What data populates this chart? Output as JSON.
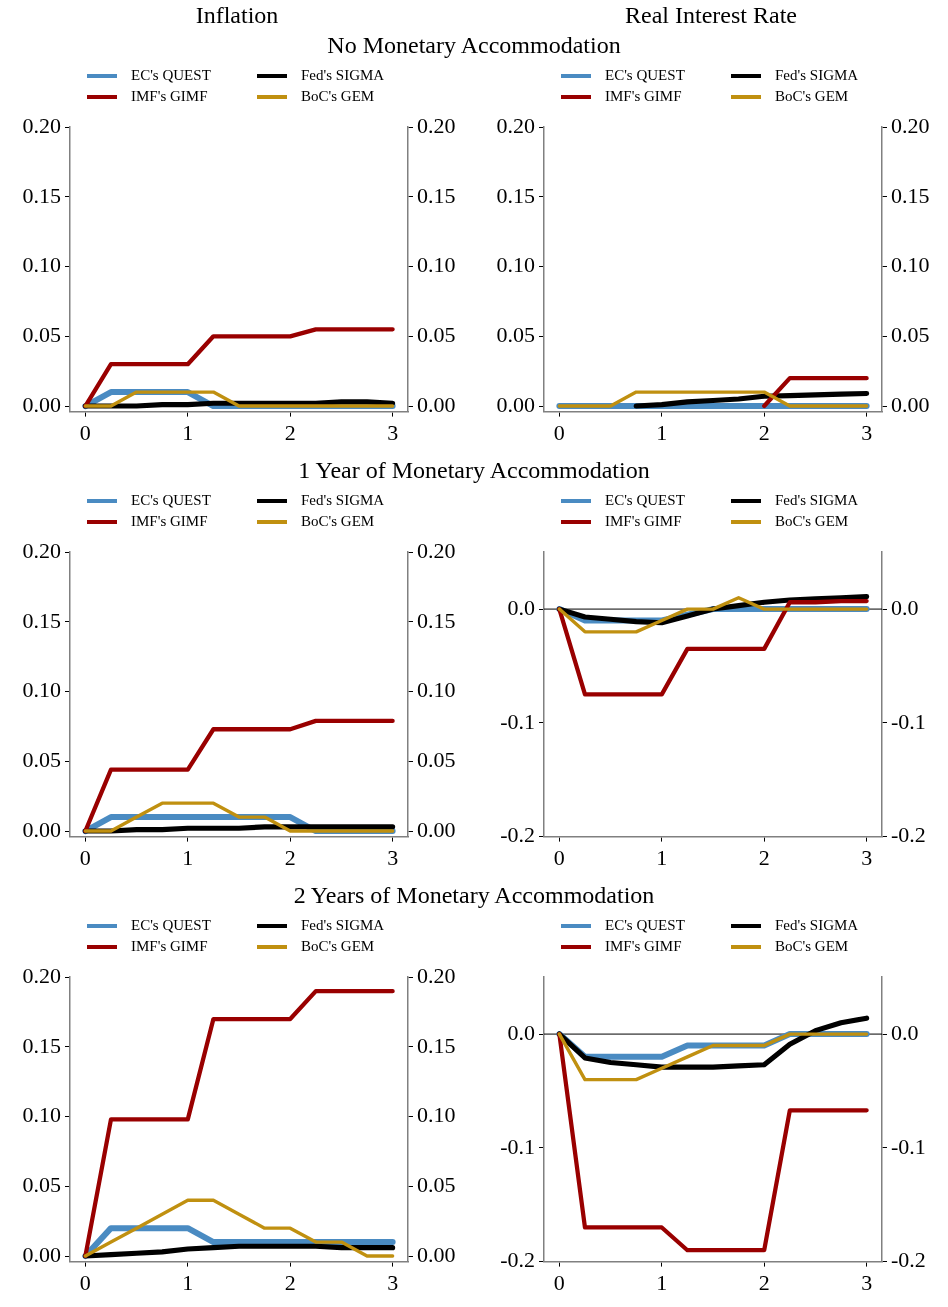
{
  "chart_data": [
    {
      "type": "line",
      "title": "Inflation",
      "subtitle": "No Monetary Accommodation",
      "x": [
        0,
        0.25,
        0.5,
        0.75,
        1,
        1.25,
        1.5,
        1.75,
        2,
        2.25,
        2.5,
        2.75,
        3
      ],
      "legend": "top",
      "grid": false,
      "xlim": [
        -0.15,
        3.15
      ],
      "xticks": [
        0,
        1,
        2,
        3
      ],
      "ylim": [
        -0.004,
        0.2
      ],
      "yticks": [
        {
          "value": 0,
          "label": "0.00"
        },
        {
          "value": 0.05,
          "label": "0.05"
        },
        {
          "value": 0.1,
          "label": "0.10"
        },
        {
          "value": 0.15,
          "label": "0.15"
        },
        {
          "value": 0.2,
          "label": "0.20"
        }
      ],
      "y2lim": [
        -0.004,
        0.2
      ],
      "y2ticks": [
        {
          "value": 0,
          "label": "0.00"
        },
        {
          "value": 0.05,
          "label": "0.05"
        },
        {
          "value": 0.1,
          "label": "0.10"
        },
        {
          "value": 0.15,
          "label": "0.15"
        },
        {
          "value": 0.2,
          "label": "0.20"
        }
      ],
      "series": [
        {
          "name": "EC's QUEST",
          "color": "#4a8bc2",
          "values": [
            0,
            0.01,
            0.01,
            0.01,
            0.01,
            0,
            0,
            0,
            0,
            0,
            0,
            0,
            0
          ]
        },
        {
          "name": "Fed's SIGMA",
          "color": "#000000",
          "values": [
            0,
            0,
            0,
            0.001,
            0.001,
            0.002,
            0.002,
            0.002,
            0.002,
            0.002,
            0.003,
            0.003,
            0.002
          ]
        },
        {
          "name": "IMF's GIMF",
          "color": "#990000",
          "values": [
            0,
            0.03,
            0.03,
            0.03,
            0.03,
            0.05,
            0.05,
            0.05,
            0.05,
            0.055,
            0.055,
            0.055,
            0.055
          ]
        },
        {
          "name": "BoC's GEM",
          "color": "#c09010",
          "values": [
            0,
            0,
            0.01,
            0.01,
            0.01,
            0.01,
            0,
            0,
            0,
            0,
            0,
            0,
            0
          ]
        }
      ]
    },
    {
      "type": "line",
      "title": "Real Interest Rate",
      "x": [
        0,
        0.25,
        0.5,
        0.75,
        1,
        1.25,
        1.5,
        1.75,
        2,
        2.25,
        2.5,
        2.75,
        3
      ],
      "legend": "top",
      "grid": false,
      "xlim": [
        -0.15,
        3.15
      ],
      "xticks": [
        0,
        1,
        2,
        3
      ],
      "ylim": [
        -0.004,
        0.2
      ],
      "yticks": [
        {
          "value": 0,
          "label": "0.00"
        },
        {
          "value": 0.05,
          "label": "0.05"
        },
        {
          "value": 0.1,
          "label": "0.10"
        },
        {
          "value": 0.15,
          "label": "0.15"
        },
        {
          "value": 0.2,
          "label": "0.20"
        }
      ],
      "y2lim": [
        -0.004,
        0.2
      ],
      "y2ticks": [
        {
          "value": 0,
          "label": "0.00"
        },
        {
          "value": 0.05,
          "label": "0.05"
        },
        {
          "value": 0.1,
          "label": "0.10"
        },
        {
          "value": 0.15,
          "label": "0.15"
        },
        {
          "value": 0.2,
          "label": "0.20"
        }
      ],
      "series": [
        {
          "name": "EC's QUEST",
          "color": "#4a8bc2",
          "values": [
            0,
            0,
            0,
            0,
            0,
            0,
            0,
            0,
            0,
            0,
            0,
            0,
            0
          ]
        },
        {
          "name": "Fed's SIGMA",
          "color": "#000000",
          "values": [
            null,
            null,
            null,
            0,
            0.001,
            0.003,
            0.004,
            0.005,
            0.007,
            0.0075,
            0.008,
            0.0085,
            0.009
          ]
        },
        {
          "name": "IMF's GIMF",
          "color": "#990000",
          "values": [
            null,
            null,
            null,
            null,
            null,
            null,
            null,
            null,
            0,
            0.02,
            0.02,
            0.02,
            0.02
          ]
        },
        {
          "name": "BoC's GEM",
          "color": "#c09010",
          "values": [
            0,
            0,
            0,
            0.01,
            0.01,
            0.01,
            0.01,
            0.01,
            0.01,
            0,
            0,
            0,
            0
          ]
        }
      ]
    },
    {
      "type": "line",
      "subtitle": "1 Year of Monetary Accommodation",
      "x": [
        0,
        0.25,
        0.5,
        0.75,
        1,
        1.25,
        1.5,
        1.75,
        2,
        2.25,
        2.5,
        2.75,
        3
      ],
      "legend": "top",
      "grid": false,
      "xlim": [
        -0.15,
        3.15
      ],
      "xticks": [
        0,
        1,
        2,
        3
      ],
      "ylim": [
        -0.004,
        0.2
      ],
      "yticks": [
        {
          "value": 0,
          "label": "0.00"
        },
        {
          "value": 0.05,
          "label": "0.05"
        },
        {
          "value": 0.1,
          "label": "0.10"
        },
        {
          "value": 0.15,
          "label": "0.15"
        },
        {
          "value": 0.2,
          "label": "0.20"
        }
      ],
      "y2lim": [
        -0.004,
        0.2
      ],
      "y2ticks": [
        {
          "value": 0,
          "label": "0.00"
        },
        {
          "value": 0.05,
          "label": "0.05"
        },
        {
          "value": 0.1,
          "label": "0.10"
        },
        {
          "value": 0.15,
          "label": "0.15"
        },
        {
          "value": 0.2,
          "label": "0.20"
        }
      ],
      "series": [
        {
          "name": "EC's QUEST",
          "color": "#4a8bc2",
          "values": [
            0,
            0.01,
            0.01,
            0.01,
            0.01,
            0.01,
            0.01,
            0.01,
            0.01,
            0,
            0,
            0,
            0
          ]
        },
        {
          "name": "Fed's SIGMA",
          "color": "#000000",
          "values": [
            0,
            0,
            0.001,
            0.001,
            0.002,
            0.002,
            0.002,
            0.003,
            0.003,
            0.003,
            0.003,
            0.003,
            0.003
          ]
        },
        {
          "name": "IMF's GIMF",
          "color": "#990000",
          "values": [
            0,
            0.044,
            0.044,
            0.044,
            0.044,
            0.073,
            0.073,
            0.073,
            0.073,
            0.079,
            0.079,
            0.079,
            0.079
          ]
        },
        {
          "name": "BoC's GEM",
          "color": "#c09010",
          "values": [
            0,
            0,
            0.01,
            0.02,
            0.02,
            0.02,
            0.01,
            0.01,
            0,
            0,
            0,
            0,
            0
          ]
        }
      ]
    },
    {
      "type": "line",
      "x": [
        0,
        0.25,
        0.5,
        0.75,
        1,
        1.25,
        1.5,
        1.75,
        2,
        2.25,
        2.5,
        2.75,
        3
      ],
      "legend": "top",
      "grid": false,
      "xlim": [
        -0.15,
        3.15
      ],
      "xticks": [
        0,
        1,
        2,
        3
      ],
      "ylim": [
        -0.2,
        0.05
      ],
      "yticks": [
        {
          "value": -0.2,
          "label": "-0.2"
        },
        {
          "value": -0.1,
          "label": "-0.1"
        },
        {
          "value": 0,
          "label": "0.0"
        }
      ],
      "y2lim": [
        -0.2,
        0.05
      ],
      "y2ticks": [
        {
          "value": -0.2,
          "label": "-0.2"
        },
        {
          "value": -0.1,
          "label": "-0.1"
        },
        {
          "value": 0,
          "label": "0.0"
        }
      ],
      "ref_lines": [
        {
          "axis": "y",
          "value": 0,
          "color": "#000000"
        }
      ],
      "series": [
        {
          "name": "EC's QUEST",
          "color": "#4a8bc2",
          "values": [
            0,
            -0.01,
            -0.01,
            -0.01,
            -0.01,
            -0.005,
            0,
            0,
            0,
            0,
            0,
            0,
            0
          ]
        },
        {
          "name": "Fed's SIGMA",
          "color": "#000000",
          "values": [
            0,
            -0.007,
            -0.009,
            -0.011,
            -0.012,
            -0.006,
            0,
            0.003,
            0.006,
            0.008,
            0.009,
            0.01,
            0.011
          ]
        },
        {
          "name": "IMF's GIMF",
          "color": "#990000",
          "values": [
            0,
            -0.075,
            -0.075,
            -0.075,
            -0.075,
            -0.035,
            -0.035,
            -0.035,
            -0.035,
            0.006,
            0.006,
            0.007,
            0.007
          ]
        },
        {
          "name": "BoC's GEM",
          "color": "#c09010",
          "values": [
            0,
            -0.02,
            -0.02,
            -0.02,
            -0.01,
            0,
            0,
            0.01,
            0,
            0,
            0,
            0,
            0
          ]
        }
      ]
    },
    {
      "type": "line",
      "subtitle": "2 Years of Monetary Accommodation",
      "x": [
        0,
        0.25,
        0.5,
        0.75,
        1,
        1.25,
        1.5,
        1.75,
        2,
        2.25,
        2.5,
        2.75,
        3
      ],
      "legend": "top",
      "grid": false,
      "xlim": [
        -0.15,
        3.15
      ],
      "xticks": [
        0,
        1,
        2,
        3
      ],
      "ylim": [
        -0.004,
        0.2
      ],
      "yticks": [
        {
          "value": 0,
          "label": "0.00"
        },
        {
          "value": 0.05,
          "label": "0.05"
        },
        {
          "value": 0.1,
          "label": "0.10"
        },
        {
          "value": 0.15,
          "label": "0.15"
        },
        {
          "value": 0.2,
          "label": "0.20"
        }
      ],
      "y2lim": [
        -0.004,
        0.2
      ],
      "y2ticks": [
        {
          "value": 0,
          "label": "0.00"
        },
        {
          "value": 0.05,
          "label": "0.05"
        },
        {
          "value": 0.1,
          "label": "0.10"
        },
        {
          "value": 0.15,
          "label": "0.15"
        },
        {
          "value": 0.2,
          "label": "0.20"
        }
      ],
      "series": [
        {
          "name": "EC's QUEST",
          "color": "#4a8bc2",
          "values": [
            0,
            0.02,
            0.02,
            0.02,
            0.02,
            0.01,
            0.01,
            0.01,
            0.01,
            0.01,
            0.01,
            0.01,
            0.01
          ]
        },
        {
          "name": "Fed's SIGMA",
          "color": "#000000",
          "values": [
            0,
            0.001,
            0.002,
            0.003,
            0.005,
            0.006,
            0.007,
            0.007,
            0.007,
            0.007,
            0.006,
            0.006,
            0.006
          ]
        },
        {
          "name": "IMF's GIMF",
          "color": "#990000",
          "values": [
            0,
            0.098,
            0.098,
            0.098,
            0.098,
            0.17,
            0.17,
            0.17,
            0.17,
            0.19,
            0.19,
            0.19,
            0.19
          ]
        },
        {
          "name": "BoC's GEM",
          "color": "#c09010",
          "values": [
            0,
            0.01,
            0.02,
            0.03,
            0.04,
            0.04,
            0.03,
            0.02,
            0.02,
            0.01,
            0.01,
            0,
            0
          ]
        }
      ]
    },
    {
      "type": "line",
      "x": [
        0,
        0.25,
        0.5,
        0.75,
        1,
        1.25,
        1.5,
        1.75,
        2,
        2.25,
        2.5,
        2.75,
        3
      ],
      "legend": "top",
      "grid": false,
      "xlim": [
        -0.15,
        3.15
      ],
      "xticks": [
        0,
        1,
        2,
        3
      ],
      "ylim": [
        -0.2,
        0.05
      ],
      "yticks": [
        {
          "value": -0.2,
          "label": "-0.2"
        },
        {
          "value": -0.1,
          "label": "-0.1"
        },
        {
          "value": 0,
          "label": "0.0"
        }
      ],
      "y2lim": [
        -0.2,
        0.05
      ],
      "y2ticks": [
        {
          "value": -0.2,
          "label": "-0.2"
        },
        {
          "value": -0.1,
          "label": "-0.1"
        },
        {
          "value": 0,
          "label": "0.0"
        }
      ],
      "ref_lines": [
        {
          "axis": "y",
          "value": 0,
          "color": "#000000"
        }
      ],
      "series": [
        {
          "name": "EC's QUEST",
          "color": "#4a8bc2",
          "values": [
            0,
            -0.02,
            -0.02,
            -0.02,
            -0.02,
            -0.01,
            -0.01,
            -0.01,
            -0.01,
            0,
            0,
            0,
            0
          ]
        },
        {
          "name": "Fed's SIGMA",
          "color": "#000000",
          "values": [
            0,
            -0.021,
            -0.025,
            -0.027,
            -0.029,
            -0.029,
            -0.029,
            -0.028,
            -0.027,
            -0.009,
            0.003,
            0.01,
            0.014
          ]
        },
        {
          "name": "IMF's GIMF",
          "color": "#990000",
          "values": [
            0,
            -0.17,
            -0.17,
            -0.17,
            -0.17,
            -0.19,
            -0.19,
            -0.19,
            -0.19,
            -0.067,
            -0.067,
            -0.067,
            -0.067
          ]
        },
        {
          "name": "BoC's GEM",
          "color": "#c09010",
          "values": [
            0,
            -0.04,
            -0.04,
            -0.04,
            -0.03,
            -0.02,
            -0.01,
            -0.01,
            -0.01,
            0,
            0,
            0,
            0
          ]
        }
      ]
    }
  ]
}
